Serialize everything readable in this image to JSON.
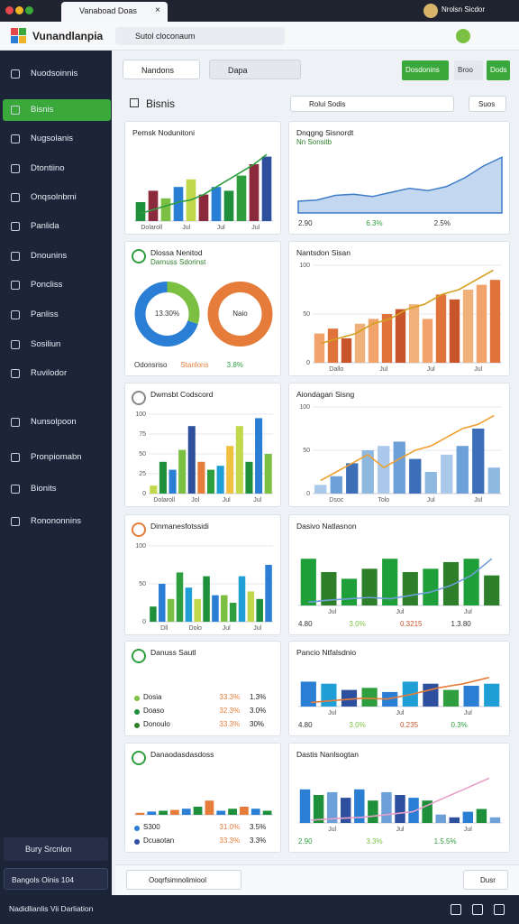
{
  "browser": {
    "tab": "Vanaboad Doas",
    "profile": "Nrolsn Sicdor"
  },
  "app": {
    "name": "Vunandlanpia",
    "search": "Sutol cloconaum"
  },
  "sidebar": {
    "items": [
      "Nuodsoinnis",
      "Bisnis",
      "Nugsolanis",
      "Dtontiino",
      "Onqsolnbmi",
      "Panlida",
      "Dnounins",
      "Poncliss",
      "Panliss",
      "Sosiliun",
      "Ruvilodor",
      "Nunsolpoon",
      "Pronpiomabn",
      "Bionits",
      "Ronononnins"
    ],
    "active": 1,
    "user": "Bury Srcnlon",
    "status": "Bangols Oinis 104"
  },
  "toolbar": {
    "filter1": "Nandons",
    "filter2": "Dapa",
    "buttons": [
      "Dosdonins",
      "Broo",
      "Dods"
    ]
  },
  "section": {
    "title": "Bisnis",
    "search": "Rolui Sodis",
    "action": "Suos"
  },
  "cards": [
    {
      "title": "Pemsk Nodunitoni",
      "chart": {
        "type": "combo",
        "values": [
          25,
          40,
          30,
          45,
          55,
          35,
          45,
          40,
          60,
          75,
          85
        ],
        "colors": [
          "#1e8f3a",
          "#8b2a3c",
          "#7bc043",
          "#2a7fd4",
          "#c0d84a",
          "#8b2a3c",
          "#2a7fd4",
          "#1e8f3a",
          "#2e9e3e",
          "#8b2a3c",
          "#2e4f9e"
        ],
        "line": [
          10,
          15,
          20,
          25,
          28,
          35,
          45,
          55,
          65,
          75,
          88
        ],
        "line_color": "#2e9e3e",
        "ylim": [
          0,
          100
        ],
        "xlabels": [
          "Dolaroll",
          "Jul",
          "Jul",
          "Jul"
        ]
      }
    },
    {
      "title": "Dnqgng Sisnordt",
      "subtitle": "Nn Sonsitb",
      "chart": {
        "type": "area",
        "values": [
          20,
          22,
          30,
          32,
          28,
          35,
          42,
          38,
          45,
          60,
          80,
          95
        ],
        "color": "#a9c8ea",
        "line_color": "#3d7cc9",
        "ylim": [
          0,
          100
        ]
      },
      "stats": [
        {
          "text": "2.90",
          "color": "#333"
        },
        {
          "text": "6.3%",
          "color": "#2e9e3e"
        },
        {
          "text": "2.5%",
          "color": "#333"
        }
      ]
    },
    {
      "title": "Dlossa Nenitod",
      "subtitle": "Darnuss Sdorinst",
      "icon": "#2e9e3e",
      "chart": {
        "type": "donut",
        "rings": [
          {
            "values": [
              30,
              70
            ],
            "colors": [
              "#7bc043",
              "#2a7fd4"
            ],
            "label": "13.30%"
          },
          {
            "values": [
              100
            ],
            "colors": [
              "#e57c3a"
            ],
            "label": "Naio"
          }
        ]
      },
      "stats": [
        {
          "text": "Odonsriso",
          "color": "#333"
        },
        {
          "text": "Stanlons",
          "color": "#e57c3a"
        },
        {
          "text": "3.8%",
          "color": "#2e9e3e"
        }
      ]
    },
    {
      "title": "Nantsdon Sisan",
      "chart": {
        "type": "combo",
        "values": [
          30,
          35,
          25,
          40,
          45,
          50,
          55,
          60,
          45,
          70,
          65,
          75,
          80,
          85
        ],
        "colors": [
          "#f2a36b",
          "#e0733a",
          "#c8552a",
          "#f0b07a"
        ],
        "line": [
          20,
          25,
          30,
          40,
          45,
          55,
          60,
          70,
          75,
          85,
          95
        ],
        "line_color": "#d4a020",
        "ylim": [
          0,
          100
        ],
        "yticks": [
          0,
          50,
          100
        ],
        "xlabels": [
          "Dallo",
          "Jul",
          "Jul",
          "Jul"
        ]
      }
    },
    {
      "title": "Dwmsbt Codscord",
      "icon": "#888",
      "chart": {
        "type": "bar",
        "values": [
          10,
          40,
          30,
          55,
          85,
          40,
          30,
          35,
          60,
          85,
          40,
          95,
          50
        ],
        "colors": [
          "#c0d84a",
          "#1e8f3a",
          "#2a7fd4",
          "#7bc043",
          "#2e4f9e",
          "#e57c3a",
          "#2e9e3e",
          "#1f9fd6",
          "#f0c040"
        ],
        "ylim": [
          0,
          100
        ],
        "yticks": [
          0,
          25,
          50,
          75,
          100
        ],
        "xlabels": [
          "Dolaroll",
          "Jol",
          "Jul",
          "Jul"
        ]
      }
    },
    {
      "title": "Aiondagan Sisng",
      "chart": {
        "type": "combo",
        "values": [
          10,
          20,
          35,
          50,
          55,
          60,
          40,
          25,
          45,
          55,
          75,
          30
        ],
        "colors": [
          "#a9c8ea",
          "#6d9fd8",
          "#3d6fb8",
          "#8fb8e0"
        ],
        "line": [
          15,
          25,
          35,
          45,
          30,
          40,
          50,
          55,
          65,
          75,
          80,
          90
        ],
        "line_color": "#f0a030",
        "ylim": [
          0,
          100
        ],
        "yticks": [
          0,
          50,
          100
        ],
        "xlabels": [
          "Dsoc",
          "Tolo",
          "Jul",
          "Jul"
        ]
      }
    },
    {
      "title": "Dinmanesfotssidi",
      "icon": "#e57c3a",
      "chart": {
        "type": "bar",
        "values": [
          20,
          50,
          30,
          65,
          45,
          30,
          60,
          35,
          35,
          25,
          60,
          40,
          30,
          75
        ],
        "colors": [
          "#1e8f3a",
          "#2a7fd4",
          "#7bc043",
          "#2e9e3e",
          "#1f9fd6",
          "#c0d84a"
        ],
        "ylim": [
          0,
          100
        ],
        "yticks": [
          0,
          50,
          100
        ],
        "xlabels": [
          "Dll",
          "Dolo",
          "Jul",
          "Jul"
        ]
      }
    },
    {
      "title": "Dasivo Natlasnon",
      "chart": {
        "type": "combo",
        "values": [
          70,
          50,
          40,
          55,
          70,
          50,
          55,
          65,
          70,
          45
        ],
        "colors": [
          "#1e9f3a",
          "#2e7f2a"
        ],
        "line": [
          5,
          8,
          10,
          12,
          10,
          15,
          20,
          30,
          45,
          70
        ],
        "line_color": "#6d9fd8",
        "ylim": [
          0,
          100
        ],
        "xlabels": [
          "Jul",
          "Jul",
          "Jul"
        ]
      },
      "stats": [
        {
          "text": "4.80",
          "color": "#333"
        },
        {
          "text": "3.0%",
          "color": "#7bc043"
        },
        {
          "text": "0.3215",
          "color": "#c8552a"
        },
        {
          "text": "1.3.80",
          "color": "#333"
        }
      ]
    },
    {
      "title": "Danuss Sautl",
      "icon": "#2e9e3e",
      "rows": [
        {
          "cells": [
            "Dosia",
            "33.3%",
            "1.3%"
          ],
          "color": "#7bc043"
        },
        {
          "cells": [
            "Doaso",
            "32.3%",
            "3.0%"
          ],
          "color": "#1e8f3a"
        },
        {
          "cells": [
            "Donoulo",
            "33.3%",
            "30%"
          ],
          "color": "#2e7f2a"
        }
      ]
    },
    {
      "title": "Pancio Ntfalsdnio",
      "chart": {
        "type": "combo",
        "values": [
          60,
          55,
          40,
          45,
          35,
          60,
          55,
          40,
          50,
          55
        ],
        "colors": [
          "#2a7fd4",
          "#1f9fd6",
          "#2e4f9e",
          "#2e9e3e"
        ],
        "line": [
          10,
          15,
          20,
          18,
          30,
          45,
          55,
          70
        ],
        "line_color": "#e57c3a",
        "ylim": [
          0,
          100
        ],
        "xlabels": [
          "Jul",
          "Jul",
          "Jul"
        ]
      },
      "stats": [
        {
          "text": "4.80",
          "color": "#333"
        },
        {
          "text": "3.0%",
          "color": "#7bc043"
        },
        {
          "text": "0.235",
          "color": "#c8552a"
        },
        {
          "text": "0.3%",
          "color": "#2e9e3e"
        }
      ]
    },
    {
      "title": "Danaodasdasdoss",
      "icon": "#2e9e3e",
      "chart": {
        "type": "bar",
        "values": [
          5,
          8,
          10,
          12,
          15,
          20,
          35,
          10,
          15,
          20,
          15,
          10
        ],
        "colors": [
          "#e57c3a",
          "#2a7fd4",
          "#1e8f3a"
        ],
        "ylim": [
          0,
          100
        ]
      },
      "rows": [
        {
          "cells": [
            "S300",
            "31.0%",
            "3.5%"
          ],
          "color": "#2a7fd4"
        },
        {
          "cells": [
            "Dcuaotan",
            "33.3%",
            "3.3%"
          ],
          "color": "#2e4f9e"
        }
      ]
    },
    {
      "title": "Dastis Nanlsogtan",
      "chart": {
        "type": "combo",
        "values": [
          60,
          50,
          55,
          45,
          60,
          40,
          55,
          50,
          45,
          40,
          15,
          10,
          20,
          25,
          10
        ],
        "colors": [
          "#2a7fd4",
          "#1e8f3a",
          "#6d9fd8",
          "#2e4f9e"
        ],
        "line": [
          5,
          8,
          10,
          15,
          20,
          40,
          60,
          80
        ],
        "line_color": "#e6a0c8",
        "ylim": [
          0,
          100
        ],
        "xlabels": [
          "Jul",
          "Jul",
          "Jul"
        ]
      },
      "stats": [
        {
          "text": "2.90",
          "color": "#2e9e3e"
        },
        {
          "text": "3.3%",
          "color": "#7bc043"
        },
        {
          "text": "1.5.5%",
          "color": "#2e9e3e"
        }
      ]
    }
  ],
  "bottom": {
    "select": "Ooqrfsimnolimiool",
    "button": "Dusr"
  },
  "footer": {
    "text": "Nadidlianlis Vii Darliation"
  }
}
